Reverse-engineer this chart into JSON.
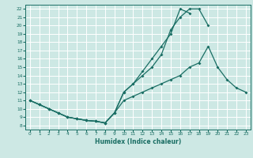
{
  "xlabel": "Humidex (Indice chaleur)",
  "bg_color": "#cde8e4",
  "grid_color": "#ffffff",
  "line_color": "#1a6e64",
  "xlim": [
    -0.5,
    23.5
  ],
  "ylim": [
    7.5,
    22.5
  ],
  "xticks": [
    0,
    1,
    2,
    3,
    4,
    5,
    6,
    7,
    8,
    9,
    10,
    11,
    12,
    13,
    14,
    15,
    16,
    17,
    18,
    19,
    20,
    21,
    22,
    23
  ],
  "yticks": [
    8,
    9,
    10,
    11,
    12,
    13,
    14,
    15,
    16,
    17,
    18,
    19,
    20,
    21,
    22
  ],
  "line1_x": [
    0,
    1,
    2,
    3,
    4,
    5,
    6,
    7,
    8,
    9,
    10,
    11,
    12,
    13,
    14,
    15,
    16,
    17,
    18,
    19,
    20,
    21,
    22,
    23
  ],
  "line1_y": [
    11.0,
    10.5,
    10.0,
    9.5,
    9.0,
    8.8,
    8.6,
    8.5,
    8.3,
    9.5,
    11.0,
    11.5,
    12.0,
    12.5,
    13.0,
    13.5,
    14.0,
    15.0,
    15.5,
    17.5,
    15.0,
    13.5,
    12.5,
    12.0
  ],
  "line2_x": [
    0,
    1,
    2,
    3,
    4,
    5,
    6,
    7,
    8,
    9,
    10,
    11,
    12,
    13,
    14,
    15,
    16,
    17,
    18,
    19
  ],
  "line2_y": [
    11.0,
    10.5,
    10.0,
    9.5,
    9.0,
    8.8,
    8.6,
    8.5,
    8.3,
    9.5,
    12.0,
    13.0,
    14.0,
    15.0,
    16.5,
    19.5,
    21.0,
    22.0,
    22.0,
    20.0
  ],
  "line3_x": [
    0,
    1,
    2,
    3,
    4,
    5,
    6,
    7,
    8,
    9,
    10,
    11,
    12,
    13,
    14,
    15,
    16,
    17
  ],
  "line3_y": [
    11.0,
    10.5,
    10.0,
    9.5,
    9.0,
    8.8,
    8.6,
    8.5,
    8.3,
    9.5,
    12.0,
    13.0,
    14.5,
    16.0,
    17.5,
    19.0,
    22.0,
    21.5
  ]
}
